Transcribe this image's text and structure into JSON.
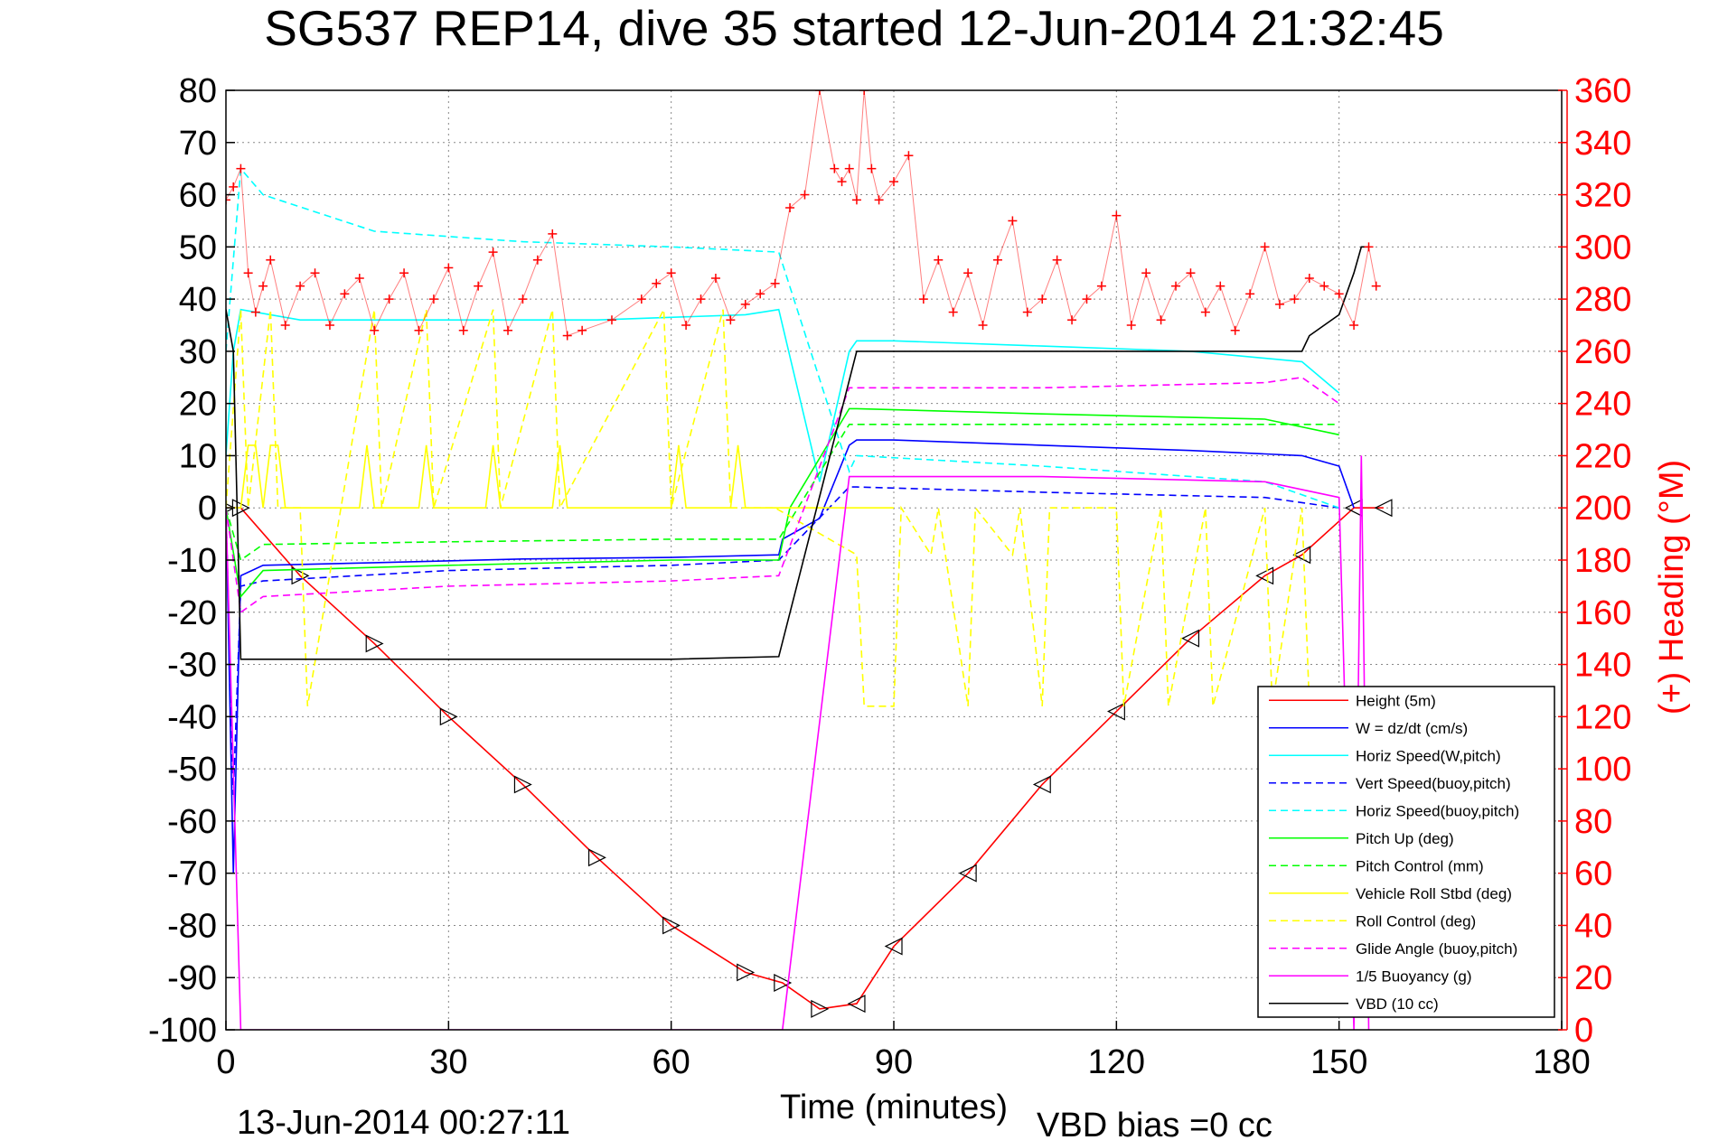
{
  "title": "SG537 REP14, dive 35 started 12-Jun-2014 21:32:45",
  "footer_left": "13-Jun-2014 00:27:11",
  "footer_right": "VBD bias =0 cc",
  "colors": {
    "red": "#ff0000",
    "blue": "#0000ff",
    "cyan": "#00ffff",
    "green": "#00ff00",
    "yellow": "#ffff00",
    "magenta": "#ff00ff",
    "black": "#000000"
  },
  "chart_data": {
    "type": "line",
    "xlabel": "Time (minutes)",
    "ylabel_right": "(+) Heading (°M)",
    "xlim": [
      0,
      180
    ],
    "ylim": [
      -100,
      80
    ],
    "y2lim": [
      0,
      360
    ],
    "xticks": [
      "0",
      "30",
      "60",
      "90",
      "120",
      "150",
      "180"
    ],
    "yticks": [
      "80",
      "70",
      "60",
      "50",
      "40",
      "30",
      "20",
      "10",
      "0",
      "-10",
      "-20",
      "-30",
      "-40",
      "-50",
      "-60",
      "-70",
      "-80",
      "-90",
      "-100"
    ],
    "y2ticks": [
      "360",
      "340",
      "320",
      "300",
      "280",
      "260",
      "240",
      "220",
      "200",
      "180",
      "160",
      "140",
      "120",
      "100",
      "80",
      "60",
      "40",
      "20",
      "0"
    ],
    "grid": true,
    "legend_position": "bottom-right",
    "legend": [
      {
        "label": "Height (5m)",
        "color": "#ff0000",
        "dash": false
      },
      {
        "label": "W = dz/dt (cm/s)",
        "color": "#0000ff",
        "dash": false
      },
      {
        "label": "Horiz Speed(W,pitch)",
        "color": "#00ffff",
        "dash": false
      },
      {
        "label": "Vert Speed(buoy,pitch)",
        "color": "#0000ff",
        "dash": true
      },
      {
        "label": "Horiz Speed(buoy,pitch)",
        "color": "#00ffff",
        "dash": true
      },
      {
        "label": "Pitch Up (deg)",
        "color": "#00ff00",
        "dash": false
      },
      {
        "label": "Pitch Control (mm)",
        "color": "#00ff00",
        "dash": true
      },
      {
        "label": "Vehicle Roll Stbd (deg)",
        "color": "#ffff00",
        "dash": false
      },
      {
        "label": "Roll Control (deg)",
        "color": "#ffff00",
        "dash": true
      },
      {
        "label": "Glide Angle (buoy,pitch)",
        "color": "#ff00ff",
        "dash": true
      },
      {
        "label": "1/5 Buoyancy (g)",
        "color": "#ff00ff",
        "dash": false
      },
      {
        "label": "VBD (10 cc)",
        "color": "#000000",
        "dash": false
      }
    ],
    "series": [
      {
        "key": "height",
        "color": "#ff0000",
        "dash": false,
        "axis": "left",
        "x": [
          0,
          2,
          10,
          20,
          30,
          40,
          50,
          60,
          70,
          75,
          80,
          85,
          90,
          100,
          110,
          120,
          130,
          140,
          145,
          152,
          156
        ],
        "y": [
          0,
          0,
          -13,
          -26,
          -40,
          -53,
          -67,
          -80,
          -89,
          -91,
          -96,
          -95,
          -84,
          -70,
          -53,
          -39,
          -25,
          -13,
          -9,
          0,
          0
        ]
      },
      {
        "key": "w",
        "color": "#0000ff",
        "dash": false,
        "axis": "left",
        "x": [
          0,
          1,
          2,
          5,
          20,
          40,
          60,
          74.5,
          75,
          80,
          84,
          85,
          90,
          110,
          130,
          145,
          150,
          152
        ],
        "y": [
          0,
          -70,
          -13,
          -11,
          -10.5,
          -9.8,
          -9.5,
          -9,
          -6,
          -2,
          12,
          13,
          13,
          12,
          11,
          10,
          8,
          0
        ]
      },
      {
        "key": "horiz_w_pitch",
        "color": "#00ffff",
        "dash": false,
        "axis": "left",
        "x": [
          0,
          1,
          2,
          10,
          30,
          50,
          70,
          74.5,
          80,
          84,
          85,
          90,
          110,
          130,
          145,
          150
        ],
        "y": [
          10,
          30,
          38,
          36,
          36,
          36,
          37,
          38,
          5,
          30,
          32,
          32,
          31,
          30,
          28,
          22
        ]
      },
      {
        "key": "vert_buoy_pitch",
        "color": "#0000ff",
        "dash": true,
        "axis": "left",
        "x": [
          0,
          1,
          2,
          5,
          30,
          60,
          74.5,
          84,
          85,
          110,
          140,
          150
        ],
        "y": [
          0,
          -55,
          -15,
          -14,
          -12,
          -11,
          -10,
          4,
          4,
          3,
          2,
          0
        ]
      },
      {
        "key": "horiz_buoy_pitch",
        "color": "#00ffff",
        "dash": true,
        "axis": "left",
        "x": [
          0,
          2,
          5,
          20,
          40,
          60,
          74.5,
          84,
          85,
          110,
          140,
          150
        ],
        "y": [
          30,
          65,
          60,
          53,
          51,
          50,
          49,
          7,
          10,
          8,
          5,
          0
        ]
      },
      {
        "key": "pitch_up",
        "color": "#00ff00",
        "dash": false,
        "axis": "left",
        "x": [
          0,
          2,
          5,
          30,
          60,
          74.5,
          76,
          84,
          85,
          110,
          140,
          150
        ],
        "y": [
          0,
          -17,
          -12,
          -11,
          -10,
          -10,
          0,
          19,
          19,
          18,
          17,
          14
        ]
      },
      {
        "key": "pitch_control",
        "color": "#00ff00",
        "dash": true,
        "axis": "left",
        "x": [
          0,
          2,
          5,
          30,
          60,
          74.5,
          84,
          85,
          110,
          140,
          150
        ],
        "y": [
          0,
          -10,
          -7,
          -6.5,
          -6,
          -6,
          16,
          16,
          16,
          16,
          16
        ]
      },
      {
        "key": "vehicle_roll",
        "color": "#ffff00",
        "dash": false,
        "axis": "left",
        "x": [
          0,
          2,
          3,
          4,
          5,
          6,
          7,
          8,
          9,
          10,
          18,
          19,
          20,
          26,
          27,
          28,
          35,
          36,
          37,
          44,
          45,
          46,
          60,
          61,
          62,
          68,
          69,
          70,
          74,
          84,
          85,
          90
        ],
        "y": [
          0,
          0,
          12,
          12,
          0,
          12,
          12,
          0,
          0,
          0,
          0,
          12,
          0,
          0,
          12,
          0,
          0,
          12,
          0,
          0,
          12,
          0,
          0,
          12,
          0,
          0,
          12,
          0,
          0,
          0,
          0,
          0
        ]
      },
      {
        "key": "roll_control",
        "color": "#ffff00",
        "dash": true,
        "axis": "left",
        "x": [
          0,
          2,
          3,
          6,
          7,
          10,
          11,
          20,
          21,
          27,
          28,
          36,
          37,
          44,
          45,
          59,
          60,
          67,
          68,
          74,
          85,
          86,
          90,
          91,
          95,
          96,
          100,
          101,
          106,
          107,
          110,
          111,
          120,
          121,
          126,
          127,
          132,
          133,
          140,
          141,
          145,
          146
        ],
        "y": [
          0,
          38,
          0,
          38,
          0,
          0,
          -38,
          38,
          0,
          38,
          0,
          38,
          0,
          38,
          0,
          38,
          0,
          38,
          0,
          0,
          -9,
          -38,
          -38,
          0,
          -9,
          0,
          -38,
          0,
          -9,
          0,
          -38,
          0,
          0,
          -38,
          0,
          -38,
          0,
          -38,
          0,
          -38,
          0,
          -38
        ]
      },
      {
        "key": "glide_angle",
        "color": "#ff00ff",
        "dash": true,
        "axis": "left",
        "x": [
          0,
          2,
          5,
          30,
          60,
          74.5,
          84,
          85,
          110,
          140,
          145,
          150
        ],
        "y": [
          0,
          -20,
          -17,
          -15,
          -14,
          -13,
          23,
          23,
          23,
          24,
          25,
          20
        ]
      },
      {
        "key": "buoyancy",
        "color": "#ff00ff",
        "dash": false,
        "axis": "left",
        "x": [
          0,
          2,
          3,
          75,
          84,
          85,
          90,
          110,
          140,
          150,
          152,
          153,
          154
        ],
        "y": [
          0,
          -100,
          -100,
          -100,
          6,
          6,
          6,
          6,
          5,
          2,
          -100,
          10,
          -100
        ]
      },
      {
        "key": "vbd",
        "color": "#000000",
        "dash": false,
        "axis": "left",
        "x": [
          0,
          1,
          2,
          3,
          30,
          60,
          74.5,
          85,
          86,
          110,
          145,
          146,
          150,
          152,
          153,
          154
        ],
        "y": [
          38,
          30,
          -29,
          -29,
          -29,
          -29,
          -28.5,
          30,
          30,
          30,
          30,
          33,
          37,
          45,
          50,
          50
        ]
      }
    ],
    "heading": {
      "color": "#ff0000",
      "marker": "+",
      "axis": "right",
      "x": [
        0,
        1,
        2,
        3,
        4,
        5,
        6,
        8,
        10,
        12,
        14,
        16,
        18,
        20,
        22,
        24,
        26,
        28,
        30,
        32,
        34,
        36,
        38,
        40,
        42,
        44,
        46,
        48,
        52,
        56,
        58,
        60,
        62,
        64,
        66,
        68,
        70,
        72,
        74,
        76,
        78,
        80,
        82,
        83,
        84,
        85,
        86,
        87,
        88,
        90,
        92,
        94,
        96,
        98,
        100,
        102,
        104,
        106,
        108,
        110,
        112,
        114,
        116,
        118,
        120,
        122,
        124,
        126,
        128,
        130,
        132,
        134,
        136,
        138,
        140,
        142,
        144,
        146,
        148,
        150,
        152,
        154,
        155
      ],
      "y": [
        318,
        323,
        330,
        290,
        275,
        285,
        295,
        270,
        285,
        290,
        270,
        282,
        288,
        268,
        280,
        290,
        268,
        280,
        292,
        268,
        285,
        298,
        268,
        280,
        295,
        305,
        266,
        268,
        272,
        280,
        286,
        290,
        270,
        280,
        288,
        272,
        278,
        282,
        286,
        315,
        320,
        360,
        330,
        325,
        330,
        318,
        360,
        330,
        318,
        325,
        335,
        280,
        295,
        275,
        290,
        270,
        295,
        310,
        275,
        280,
        295,
        272,
        280,
        285,
        312,
        270,
        290,
        272,
        285,
        290,
        275,
        285,
        268,
        282,
        300,
        278,
        280,
        288,
        285,
        282,
        270,
        300,
        285
      ]
    }
  }
}
